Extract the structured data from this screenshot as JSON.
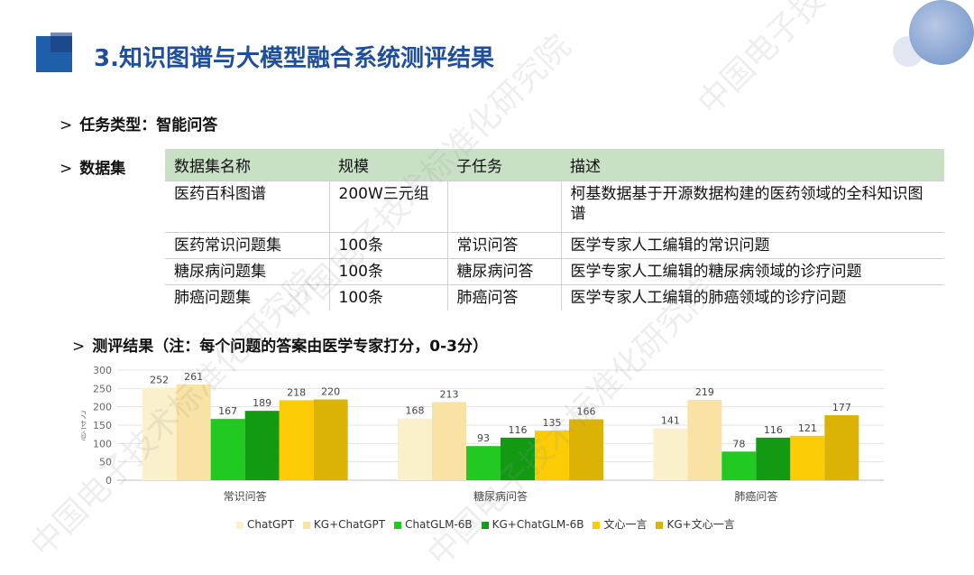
{
  "title": "3.知识图谱与大模型融合系统测评结果",
  "task": {
    "arrow": ">",
    "text": "任务类型：智能问答"
  },
  "dataset": {
    "arrow": ">",
    "label": "数据集",
    "headers": [
      "数据集名称",
      "规模",
      "子任务",
      "描述"
    ],
    "rows": [
      [
        "医药百科图谱",
        "200W三元组",
        "",
        "柯基数据基于开源数据构建的医药领域的全科知识图谱"
      ],
      [
        "医药常识问题集",
        "100条",
        "常识问答",
        "医学专家人工编辑的常识问题"
      ],
      [
        "糖尿病问题集",
        "100条",
        "糖尿病问答",
        "医学专家人工编辑的糖尿病领域的诊疗问题"
      ],
      [
        "肺癌问题集",
        "100条",
        "肺癌问答",
        "医学专家人工编辑的肺癌领域的诊疗问题"
      ]
    ]
  },
  "results": {
    "arrow": ">",
    "text": "测评结果（注：每个问题的答案由医学专家打分，0-3分）"
  },
  "watermark": "中国电子技术标准化研究院",
  "chart_data": {
    "type": "bar",
    "categories": [
      "常识问答",
      "糖尿病问答",
      "肺癌问答"
    ],
    "series": [
      {
        "name": "ChatGPT",
        "values": [
          252,
          168,
          141
        ],
        "color": "#fbf0cc"
      },
      {
        "name": "KG+ChatGPT",
        "values": [
          261,
          213,
          219
        ],
        "color": "#f8e3a4"
      },
      {
        "name": "ChatGLM-6B",
        "values": [
          167,
          93,
          78
        ],
        "color": "#22c922"
      },
      {
        "name": "KG+ChatGLM-6B",
        "values": [
          189,
          116,
          116
        ],
        "color": "#129a12"
      },
      {
        "name": "文心一言",
        "values": [
          218,
          135,
          121
        ],
        "color": "#fbcc06"
      },
      {
        "name": "KG+文心一言",
        "values": [
          220,
          166,
          177
        ],
        "color": "#dcb204"
      }
    ],
    "title": "",
    "xlabel": "",
    "ylabel": "总得分",
    "ylim": [
      0,
      300
    ],
    "yticks": [
      0,
      50,
      100,
      150,
      200,
      250,
      300
    ],
    "grid": true,
    "legend": "bottom"
  }
}
